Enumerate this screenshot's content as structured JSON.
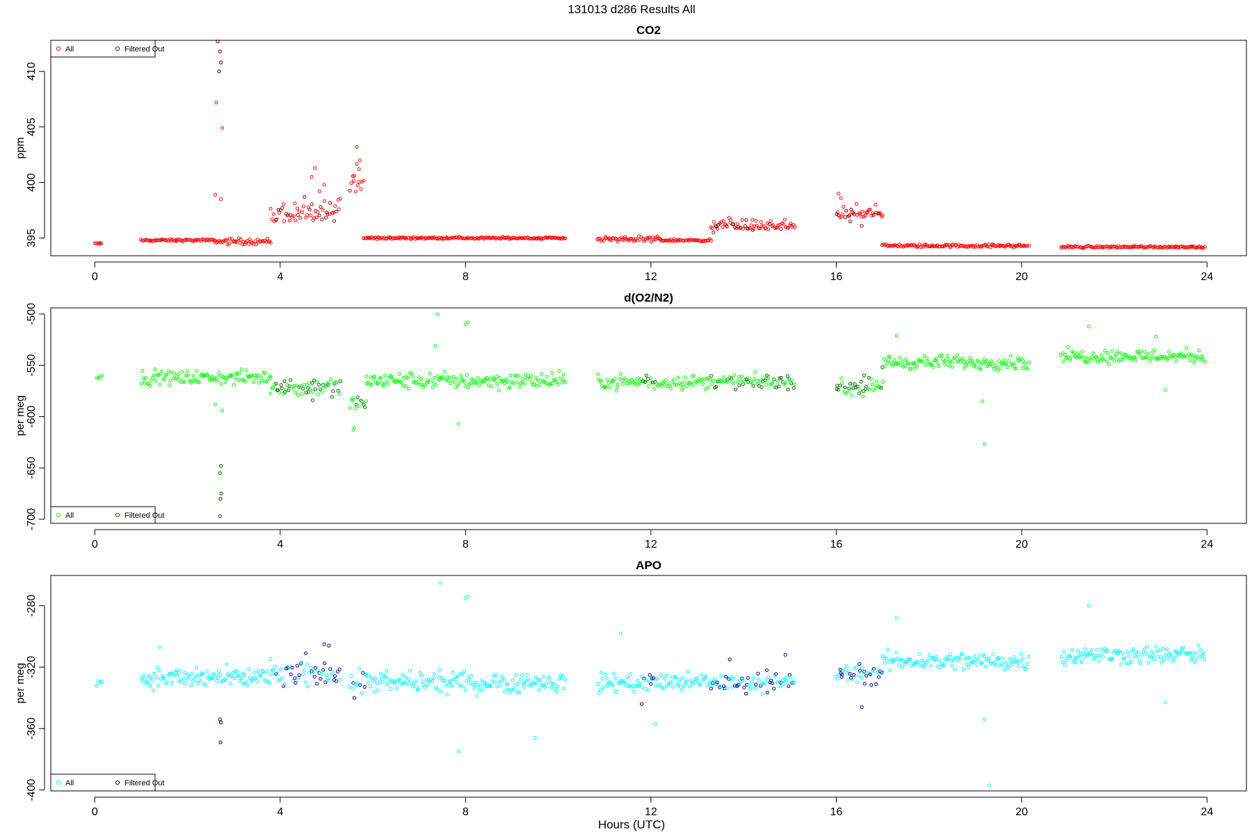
{
  "figure_title": "131013   d286   Results All",
  "xlabel": "Hours (UTC)",
  "chart_data": [
    {
      "type": "scatter",
      "title": "CO2",
      "ylabel": "ppm",
      "xlim": [
        -0.95,
        24.85
      ],
      "ylim": [
        393.4,
        412.8
      ],
      "xticks": [
        "0",
        "4",
        "8",
        "12",
        "16",
        "20",
        "24"
      ],
      "yticks": [
        "395",
        "400",
        "405",
        "410"
      ],
      "legend": {
        "placement": "top-left",
        "entries": [
          "All",
          "Filtered Out"
        ]
      },
      "colors": {
        "all": "#ff0000",
        "filtered": "#8b0000"
      },
      "series": [
        {
          "name": "All",
          "segments": [
            {
              "from": 0.0,
              "to": 0.15,
              "base": 394.5,
              "spread": 0.1
            },
            {
              "from": 1.0,
              "to": 2.6,
              "base": 394.8,
              "spread": 0.15
            },
            {
              "from": 2.6,
              "to": 3.8,
              "base": 394.7,
              "spread": 0.4
            },
            {
              "from": 3.8,
              "to": 5.3,
              "base": 396.5,
              "spread": 3.0
            },
            {
              "from": 5.5,
              "to": 5.8,
              "base": 399.0,
              "spread": 3.5
            },
            {
              "from": 5.8,
              "to": 10.15,
              "base": 395.0,
              "spread": 0.15
            },
            {
              "from": 10.85,
              "to": 12.2,
              "base": 394.9,
              "spread": 0.35
            },
            {
              "from": 12.2,
              "to": 13.3,
              "base": 394.8,
              "spread": 0.15
            },
            {
              "from": 13.3,
              "to": 15.1,
              "base": 395.8,
              "spread": 1.2
            },
            {
              "from": 16.0,
              "to": 17.0,
              "base": 396.8,
              "spread": 1.6
            },
            {
              "from": 17.0,
              "to": 20.15,
              "base": 394.3,
              "spread": 0.2
            },
            {
              "from": 20.85,
              "to": 23.95,
              "base": 394.2,
              "spread": 0.15
            }
          ],
          "points": [
            [
              2.65,
              412.7
            ],
            [
              2.7,
              411.8
            ],
            [
              2.72,
              410.8
            ],
            [
              2.68,
              410.0
            ],
            [
              2.62,
              407.2
            ],
            [
              2.75,
              404.9
            ],
            [
              2.6,
              398.9
            ],
            [
              2.72,
              398.5
            ],
            [
              5.65,
              403.2
            ],
            [
              5.72,
              402.0
            ],
            [
              5.7,
              401.2
            ],
            [
              5.6,
              400.6
            ],
            [
              4.75,
              401.3
            ],
            [
              4.68,
              400.5
            ],
            [
              4.85,
              399.2
            ],
            [
              4.95,
              399.8
            ],
            [
              16.05,
              399.0
            ],
            [
              16.1,
              398.6
            ]
          ]
        },
        {
          "name": "Filtered Out",
          "segments": [],
          "points": [
            [
              2.65,
              412.7
            ],
            [
              2.7,
              411.8
            ],
            [
              2.72,
              410.8
            ],
            [
              2.68,
              410.0
            ],
            [
              13.35,
              395.5
            ],
            [
              14.2,
              395.7
            ],
            [
              16.3,
              396.5
            ],
            [
              16.55,
              396.1
            ]
          ]
        }
      ]
    },
    {
      "type": "scatter",
      "title": "d(O2/N2)",
      "ylabel": "per meg",
      "xlim": [
        -0.95,
        24.85
      ],
      "ylim": [
        -704,
        -494
      ],
      "xticks": [
        "0",
        "4",
        "8",
        "12",
        "16",
        "20",
        "24"
      ],
      "yticks": [
        "-500",
        "-550",
        "-600",
        "-650",
        "-700"
      ],
      "legend": {
        "placement": "bottom-left",
        "entries": [
          "All",
          "Filtered Out"
        ]
      },
      "colors": {
        "all": "#00ff00",
        "filtered": "#006400"
      },
      "series": [
        {
          "name": "All",
          "segments": [
            {
              "from": 0.05,
              "to": 0.15,
              "base": -561,
              "spread": 5
            },
            {
              "from": 1.0,
              "to": 3.8,
              "base": -562,
              "spread": 10
            },
            {
              "from": 3.8,
              "to": 5.3,
              "base": -570,
              "spread": 15
            },
            {
              "from": 5.5,
              "to": 5.85,
              "base": -588,
              "spread": 20
            },
            {
              "from": 5.85,
              "to": 10.15,
              "base": -565,
              "spread": 12
            },
            {
              "from": 10.85,
              "to": 15.1,
              "base": -566,
              "spread": 10
            },
            {
              "from": 16.0,
              "to": 17.0,
              "base": -572,
              "spread": 12
            },
            {
              "from": 17.0,
              "to": 20.15,
              "base": -547,
              "spread": 10
            },
            {
              "from": 20.85,
              "to": 23.95,
              "base": -541,
              "spread": 10
            }
          ],
          "points": [
            [
              2.72,
              -648
            ],
            [
              2.7,
              -655
            ],
            [
              2.73,
              -675
            ],
            [
              2.71,
              -680
            ],
            [
              2.7,
              -697
            ],
            [
              2.75,
              -594
            ],
            [
              2.6,
              -588
            ],
            [
              7.4,
              -500
            ],
            [
              8.05,
              -508
            ],
            [
              8.0,
              -510
            ],
            [
              7.85,
              -607
            ],
            [
              7.35,
              -531
            ],
            [
              19.2,
              -627
            ],
            [
              19.15,
              -585
            ],
            [
              23.1,
              -574
            ],
            [
              21.45,
              -512
            ],
            [
              17.3,
              -521
            ],
            [
              22.9,
              -522
            ],
            [
              5.58,
              -613
            ],
            [
              5.6,
              -611
            ]
          ]
        },
        {
          "name": "Filtered Out",
          "segments": [],
          "points": [
            [
              2.72,
              -648
            ],
            [
              2.7,
              -655
            ],
            [
              2.73,
              -675
            ],
            [
              2.71,
              -680
            ],
            [
              2.7,
              -697
            ],
            [
              4.1,
              -576
            ],
            [
              4.6,
              -572
            ],
            [
              4.7,
              -584
            ],
            [
              16.3,
              -568
            ],
            [
              16.6,
              -560
            ],
            [
              14.5,
              -560
            ]
          ]
        }
      ]
    },
    {
      "type": "scatter",
      "title": "APO",
      "ylabel": "per meg",
      "xlim": [
        -0.95,
        24.85
      ],
      "ylim": [
        -400.6,
        -260.3
      ],
      "xticks": [
        "0",
        "4",
        "8",
        "12",
        "16",
        "20",
        "24"
      ],
      "yticks": [
        "-280",
        "-320",
        "-360",
        "-400"
      ],
      "legend": {
        "placement": "bottom-left",
        "entries": [
          "All",
          "Filtered Out"
        ]
      },
      "colors": {
        "all": "#00ffff",
        "filtered": "#00008b"
      },
      "series": [
        {
          "name": "All",
          "segments": [
            {
              "from": 0.05,
              "to": 0.15,
              "base": -330,
              "spread": 4
            },
            {
              "from": 1.0,
              "to": 3.8,
              "base": -327,
              "spread": 10
            },
            {
              "from": 3.8,
              "to": 5.3,
              "base": -325,
              "spread": 12
            },
            {
              "from": 5.5,
              "to": 5.85,
              "base": -330,
              "spread": 10
            },
            {
              "from": 5.85,
              "to": 10.15,
              "base": -330,
              "spread": 10
            },
            {
              "from": 10.85,
              "to": 15.1,
              "base": -330,
              "spread": 9
            },
            {
              "from": 16.0,
              "to": 17.0,
              "base": -325,
              "spread": 9
            },
            {
              "from": 17.0,
              "to": 20.15,
              "base": -316,
              "spread": 9
            },
            {
              "from": 20.85,
              "to": 23.95,
              "base": -312,
              "spread": 9
            }
          ],
          "points": [
            [
              7.45,
              -265
            ],
            [
              8.05,
              -274
            ],
            [
              8.0,
              -275
            ],
            [
              7.85,
              -375
            ],
            [
              19.3,
              -397
            ],
            [
              19.2,
              -354
            ],
            [
              9.5,
              -366
            ],
            [
              1.4,
              -307
            ],
            [
              21.45,
              -280
            ],
            [
              17.3,
              -288
            ],
            [
              23.1,
              -343
            ],
            [
              2.7,
              -354
            ],
            [
              2.72,
              -356
            ],
            [
              2.71,
              -369
            ],
            [
              11.35,
              -298
            ],
            [
              12.1,
              -357
            ]
          ]
        },
        {
          "name": "Filtered Out",
          "segments": [],
          "points": [
            [
              2.7,
              -354
            ],
            [
              2.72,
              -356
            ],
            [
              2.71,
              -369
            ],
            [
              4.95,
              -305
            ],
            [
              5.05,
              -306
            ],
            [
              4.55,
              -311
            ],
            [
              5.6,
              -340
            ],
            [
              11.8,
              -344
            ],
            [
              12.0,
              -331
            ],
            [
              13.3,
              -334
            ],
            [
              13.7,
              -315
            ],
            [
              14.5,
              -322
            ],
            [
              14.9,
              -312
            ],
            [
              16.1,
              -324
            ],
            [
              16.5,
              -318
            ],
            [
              16.55,
              -346
            ]
          ]
        }
      ]
    }
  ]
}
